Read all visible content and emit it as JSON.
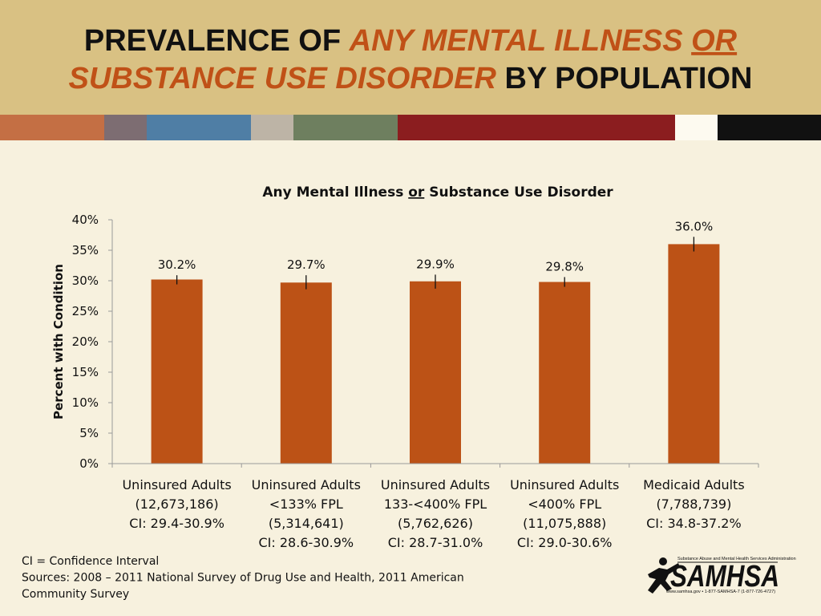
{
  "header": {
    "line1": [
      {
        "text": "PREVALENCE OF ",
        "style": "dark",
        "underline": false
      },
      {
        "text": "ANY MENTAL ILLNESS ",
        "style": "accent",
        "underline": false
      },
      {
        "text": "OR",
        "style": "accent",
        "underline": true
      }
    ],
    "line2": [
      {
        "text": "SUBSTANCE USE DISORDER",
        "style": "accent",
        "underline": false
      },
      {
        "text": " BY POPULATION",
        "style": "dark",
        "underline": false
      }
    ]
  },
  "color_strip": [
    "#c46f44",
    "#7d6d72",
    "#4f7ea5",
    "#bdb4a6",
    "#6e7f5f",
    "#8b1d1f",
    "#fdfaf0",
    "#111111"
  ],
  "colors": {
    "bar": "#bc5216",
    "background": "#f7f1de",
    "header_background": "#d9c183",
    "accent_text": "#c05117"
  },
  "chart_data": {
    "type": "bar",
    "title_parts": [
      {
        "text": "Any Mental Illness ",
        "underline": false
      },
      {
        "text": "or",
        "underline": true
      },
      {
        "text": " Substance Use Disorder",
        "underline": false
      }
    ],
    "ylabel": "Percent with Condition",
    "ylim": [
      0,
      40
    ],
    "yticks": [
      0,
      5,
      10,
      15,
      20,
      25,
      30,
      35,
      40
    ],
    "ytick_labels": [
      "0%",
      "5%",
      "10%",
      "15%",
      "20%",
      "25%",
      "30%",
      "35%",
      "40%"
    ],
    "categories": [
      [
        "Uninsured Adults",
        "(12,673,186)",
        "CI: 29.4-30.9%"
      ],
      [
        "Uninsured Adults",
        "<133% FPL",
        "(5,314,641)",
        "CI: 28.6-30.9%"
      ],
      [
        "Uninsured Adults",
        "133-<400% FPL",
        "(5,762,626)",
        "CI: 28.7-31.0%"
      ],
      [
        "Uninsured Adults",
        "<400% FPL",
        "(11,075,888)",
        "CI: 29.0-30.6%"
      ],
      [
        "Medicaid Adults",
        "(7,788,739)",
        "CI: 34.8-37.2%"
      ]
    ],
    "values": [
      30.2,
      29.7,
      29.9,
      29.8,
      36.0
    ],
    "ci_low": [
      29.4,
      28.6,
      28.7,
      29.0,
      34.8
    ],
    "ci_high": [
      30.9,
      30.9,
      31.0,
      30.6,
      37.2
    ],
    "data_labels": [
      "30.2%",
      "29.7%",
      "29.9%",
      "29.8%",
      "36.0%"
    ],
    "grid": false,
    "legend": "none"
  },
  "footnote": {
    "lines": [
      "CI = Confidence Interval",
      "Sources: 2008 – 2011 National Survey of Drug Use and Health, 2011 American",
      "Community Survey"
    ]
  },
  "logo": {
    "wordmark": "SAMHSA",
    "tagline": "Substance Abuse and Mental Health Services Administration",
    "contact": "www.samhsa.gov • 1-877-SAMHSA-7 (1-877-726-4727)"
  }
}
